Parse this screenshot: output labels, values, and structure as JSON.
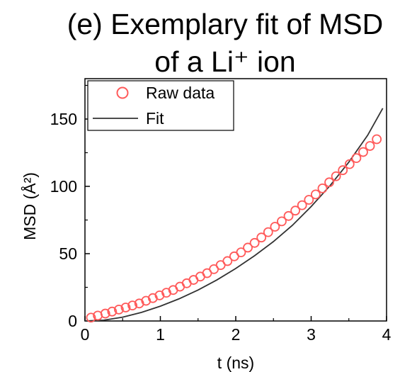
{
  "chart_data": {
    "type": "scatter",
    "title": [
      "(e) Exemplary fit of MSD",
      "of a Li⁺ ion"
    ],
    "xlabel": "t (ns)",
    "ylabel": "MSD (Å²)",
    "xlim": [
      0,
      4
    ],
    "ylim": [
      0,
      180
    ],
    "xticks": [
      "0",
      "1",
      "2",
      "3",
      "4"
    ],
    "yticks": [
      "0",
      "50",
      "100",
      "150"
    ],
    "grid": false,
    "legend_position": "top-left",
    "series": [
      {
        "name": "Raw data",
        "kind": "scatter",
        "marker": "open-circle",
        "color": "#ff5a5a",
        "x": [
          0.08,
          0.17,
          0.27,
          0.36,
          0.45,
          0.54,
          0.63,
          0.72,
          0.81,
          0.9,
          0.99,
          1.08,
          1.17,
          1.26,
          1.35,
          1.44,
          1.53,
          1.62,
          1.71,
          1.8,
          1.89,
          1.98,
          2.07,
          2.16,
          2.25,
          2.34,
          2.43,
          2.52,
          2.61,
          2.7,
          2.79,
          2.88,
          2.97,
          3.06,
          3.15,
          3.24,
          3.33,
          3.42,
          3.51,
          3.6,
          3.69,
          3.78,
          3.87
        ],
        "y": [
          2.5,
          4.0,
          5.5,
          7.0,
          8.5,
          10.0,
          11.5,
          13.0,
          15.0,
          17.0,
          19.0,
          21.0,
          23.0,
          25.5,
          28.0,
          30.5,
          33.0,
          35.5,
          38.5,
          41.5,
          44.5,
          48.0,
          51.0,
          54.5,
          58.0,
          62.0,
          66.0,
          70.0,
          74.0,
          78.0,
          82.0,
          86.0,
          90.0,
          94.0,
          98.5,
          103.0,
          107.5,
          112.0,
          116.5,
          121.0,
          125.5,
          130.0,
          135.0
        ]
      },
      {
        "name": "Fit",
        "kind": "line",
        "color": "#333333",
        "x": [
          0,
          0.25,
          0.5,
          0.75,
          1.0,
          1.25,
          1.5,
          1.75,
          2.0,
          2.25,
          2.5,
          2.75,
          3.0,
          3.25,
          3.5,
          3.75,
          3.95
        ],
        "y": [
          0,
          0.6,
          2.8,
          6.4,
          11.0,
          16.5,
          23.0,
          30.5,
          39.0,
          48.5,
          59.0,
          71.0,
          85.0,
          100.5,
          118.0,
          138.0,
          158.0
        ]
      }
    ]
  }
}
